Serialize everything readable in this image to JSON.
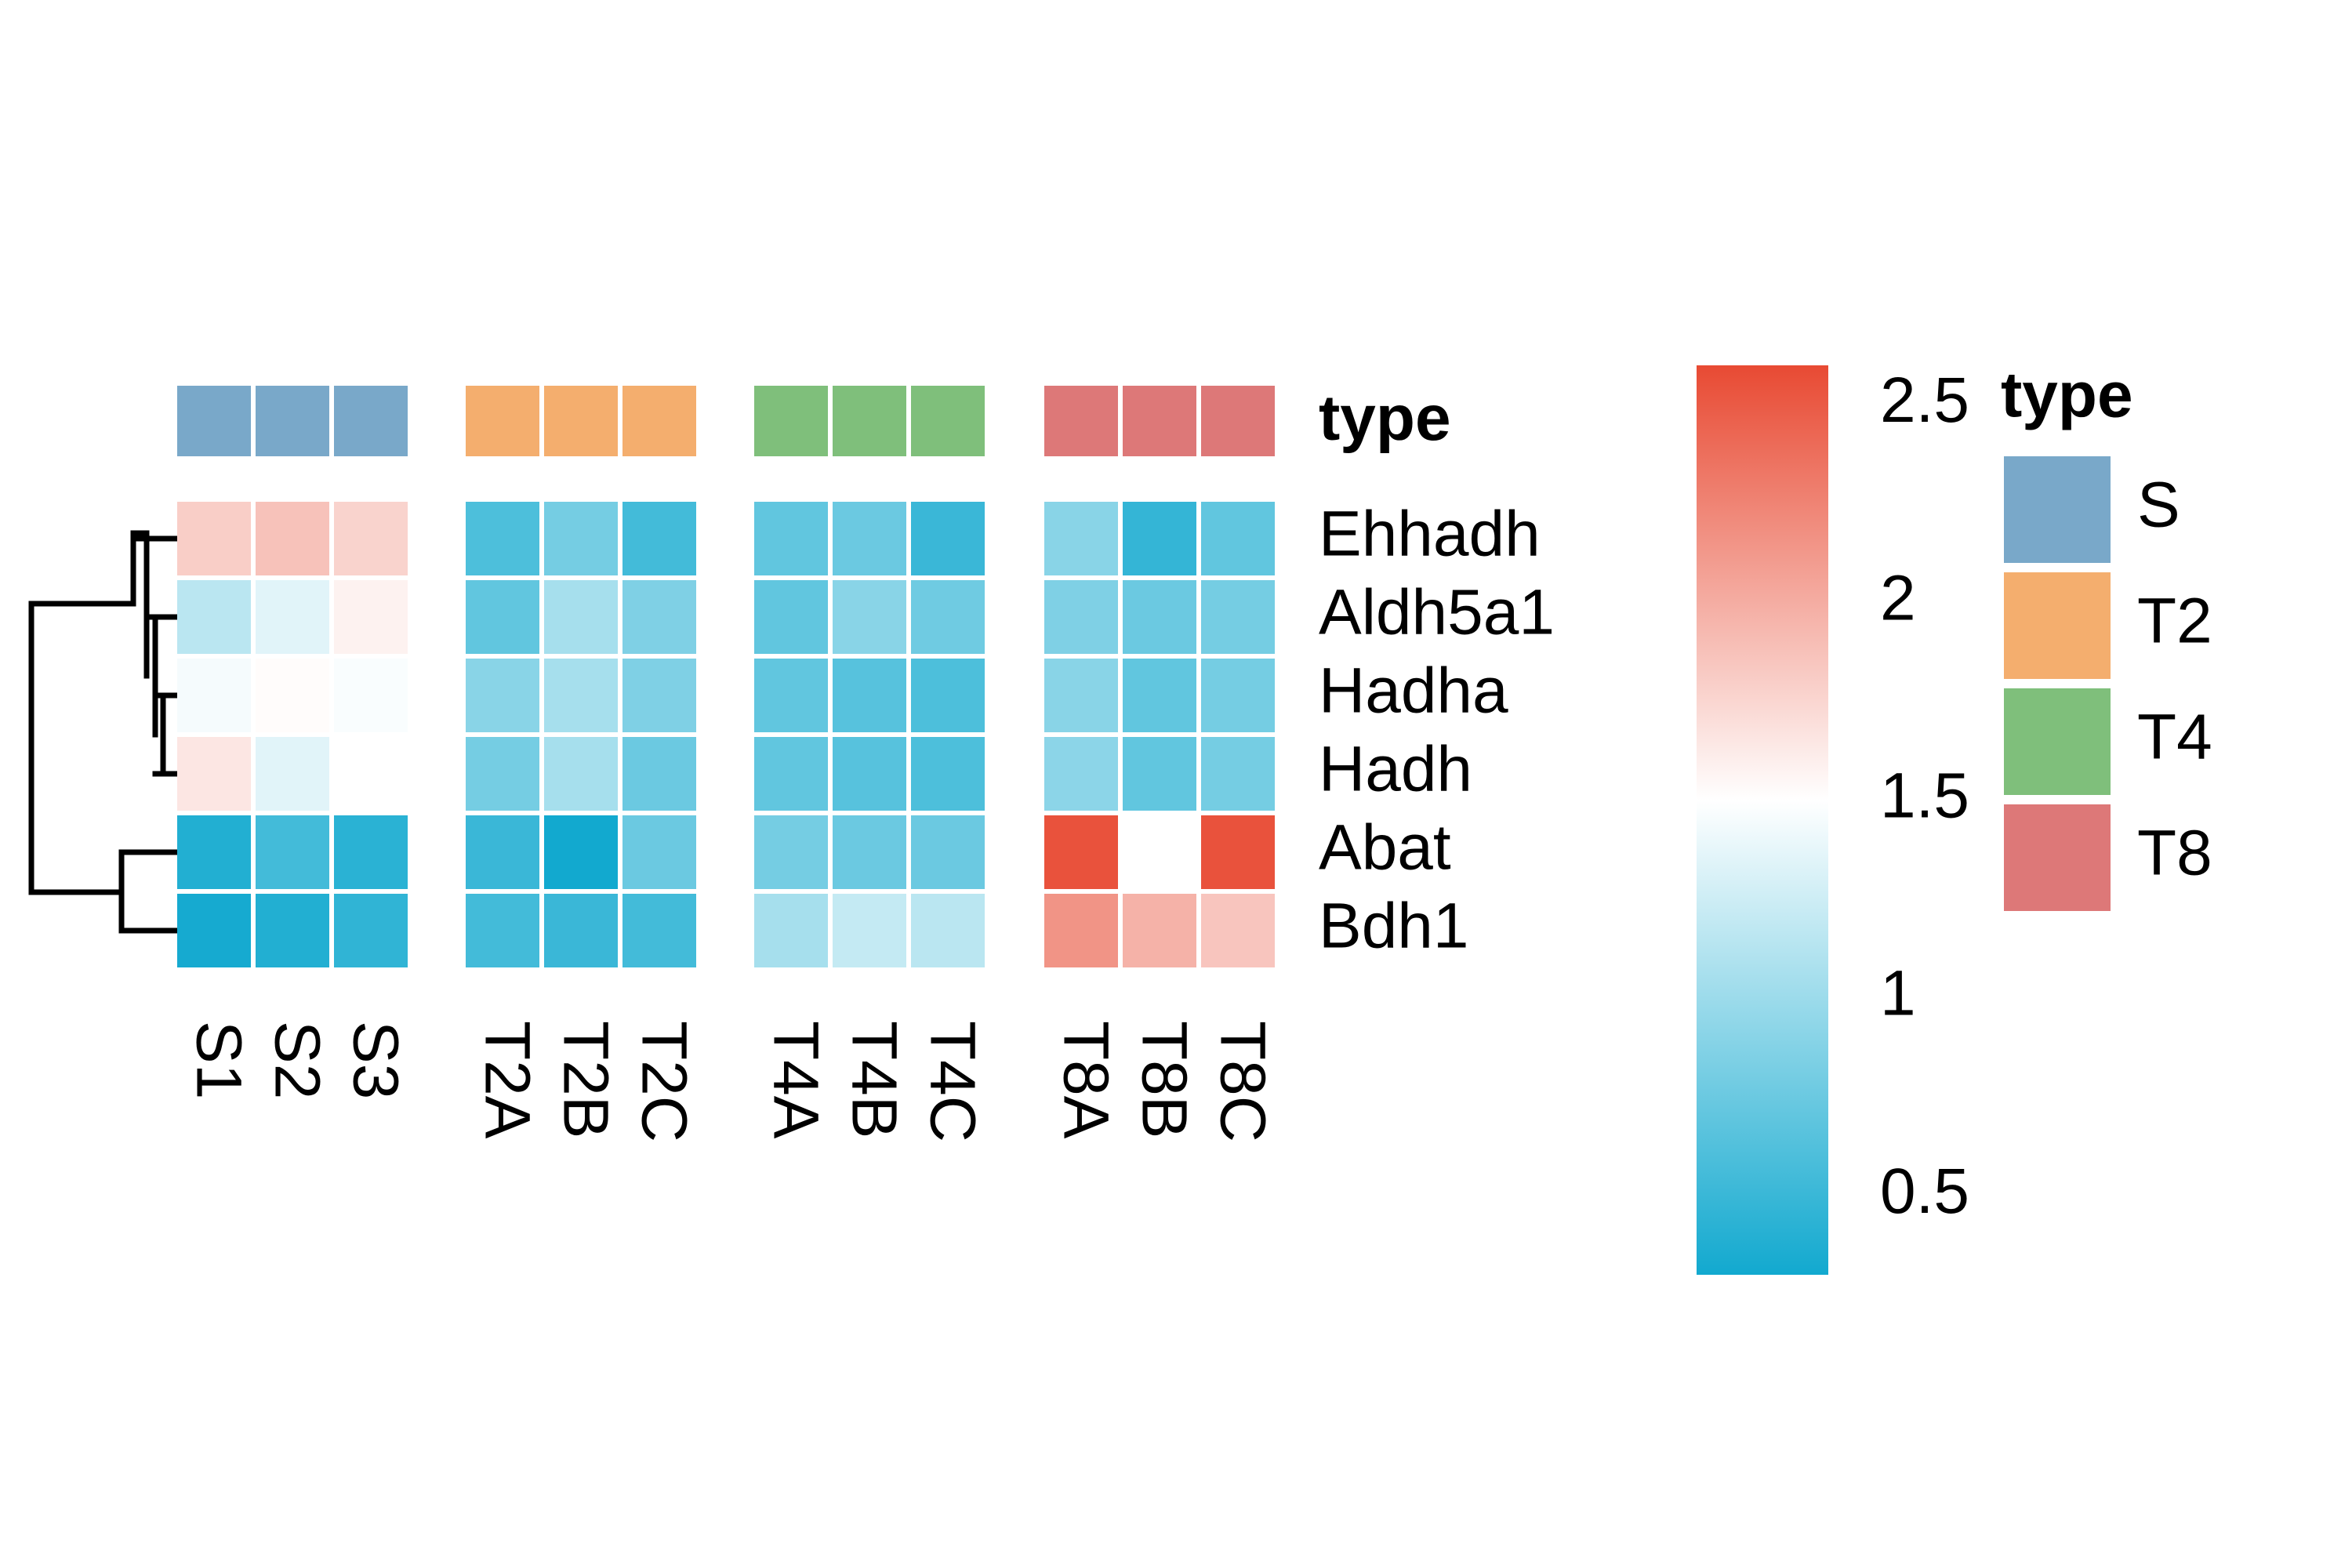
{
  "chart_data": {
    "type": "heatmap",
    "rows": [
      "Ehhadh",
      "Aldh5a1",
      "Hadha",
      "Hadh",
      "Abat",
      "Bdh1"
    ],
    "column_groups": [
      {
        "name": "S",
        "columns": [
          "S1",
          "S2",
          "S3"
        ]
      },
      {
        "name": "T2",
        "columns": [
          "T2A",
          "T2B",
          "T2C"
        ]
      },
      {
        "name": "T4",
        "columns": [
          "T4A",
          "T4B",
          "T4C"
        ]
      },
      {
        "name": "T8",
        "columns": [
          "T8A",
          "T8B",
          "T8C"
        ]
      }
    ],
    "values": [
      [
        1.8,
        1.87,
        1.77,
        0.6,
        0.8,
        0.55,
        0.7,
        0.75,
        0.5,
        0.9,
        0.47,
        0.7
      ],
      [
        1.15,
        1.35,
        1.58,
        0.7,
        1.05,
        0.85,
        0.7,
        0.9,
        0.77,
        0.85,
        0.75,
        0.8
      ],
      [
        1.45,
        1.52,
        1.47,
        0.9,
        1.05,
        0.85,
        0.7,
        0.65,
        0.6,
        0.9,
        0.7,
        0.8
      ],
      [
        1.65,
        1.35,
        1.5,
        0.8,
        1.05,
        0.75,
        0.7,
        0.65,
        0.6,
        0.92,
        0.7,
        0.8
      ],
      [
        0.38,
        0.55,
        0.42,
        0.5,
        0.3,
        0.75,
        0.8,
        0.75,
        0.75,
        2.55,
        1.5,
        2.55
      ],
      [
        0.32,
        0.38,
        0.45,
        0.55,
        0.5,
        0.55,
        1.05,
        1.2,
        1.15,
        2.15,
        1.97,
        1.85
      ]
    ],
    "annotation": {
      "name": "type",
      "colors": {
        "S": "#79a8c9",
        "T2": "#f4ae6e",
        "T4": "#7fbf7b",
        "T8": "#dd7878"
      }
    },
    "color_scale": {
      "min": 0.3,
      "max": 2.6,
      "stops": [
        {
          "value": 0.3,
          "color": "#12a9cf"
        },
        {
          "value": 1.5,
          "color": "#ffffff"
        },
        {
          "value": 2.6,
          "color": "#e84a33"
        }
      ],
      "ticks": [
        "0.5",
        "1",
        "1.5",
        "2",
        "2.5"
      ]
    },
    "row_dendrogram": "left",
    "grid": false
  },
  "annotation_label": "type",
  "legend": {
    "title": "type",
    "items": [
      "S",
      "T2",
      "T4",
      "T8"
    ]
  }
}
